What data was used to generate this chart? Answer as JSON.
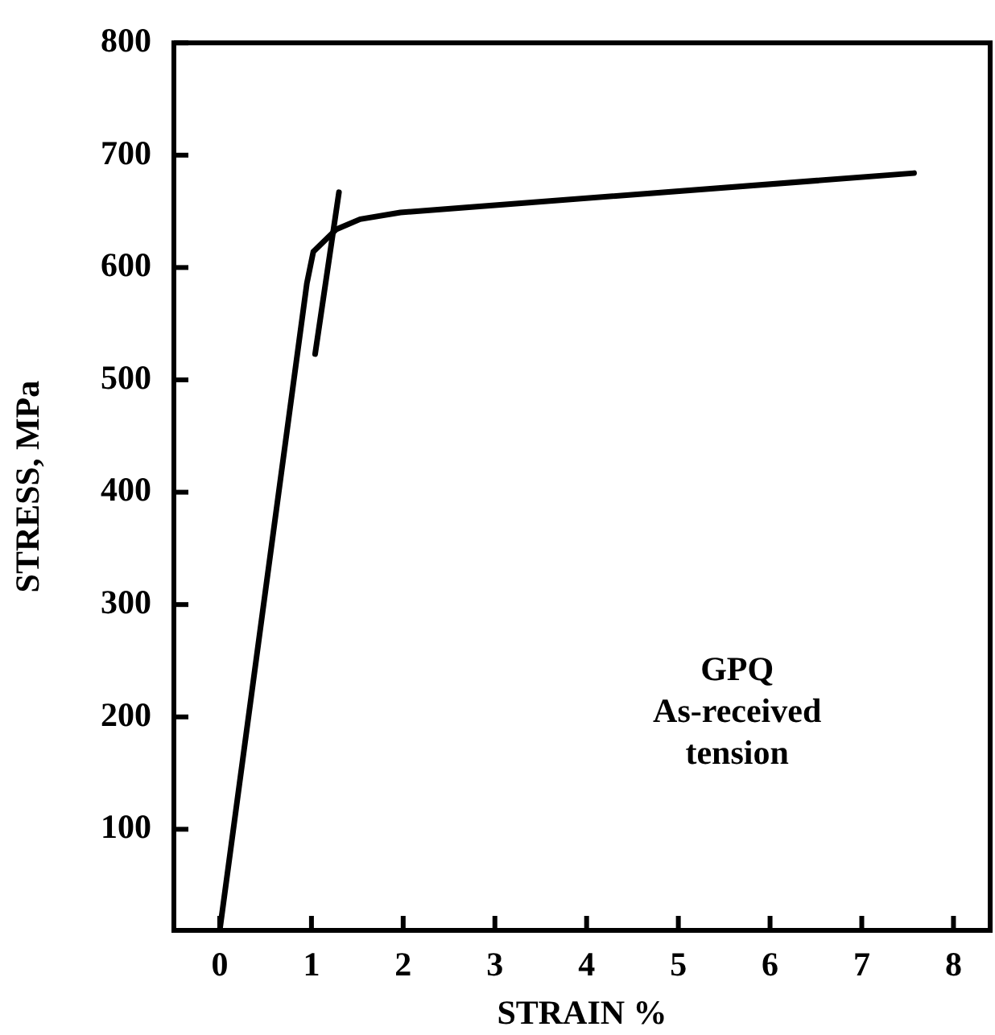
{
  "chart_data": {
    "type": "line",
    "xlabel": "STRAIN %",
    "ylabel": "STRESS, MPa",
    "annotations": [
      "GPQ\nAs-received\ntension"
    ],
    "series": [
      {
        "color": "#000000",
        "x": [
          0,
          0.95,
          1.02,
          1.27,
          1.53,
          1.97,
          7.57
        ],
        "values": [
          10,
          586,
          614,
          634,
          643,
          649,
          684
        ]
      },
      {
        "color": "#000000",
        "x": [
          1.04,
          1.3
        ],
        "values": [
          523,
          667
        ]
      }
    ],
    "xlim": [
      -0.5,
      8.4
    ],
    "xticks": [
      0,
      1,
      2,
      3,
      4,
      5,
      6,
      7,
      8
    ],
    "ylim": [
      10,
      800
    ],
    "yticks": [
      100,
      200,
      300,
      400,
      500,
      600,
      700,
      800
    ],
    "grid": false,
    "legend": false,
    "marker": "none",
    "line_style": "solid"
  }
}
